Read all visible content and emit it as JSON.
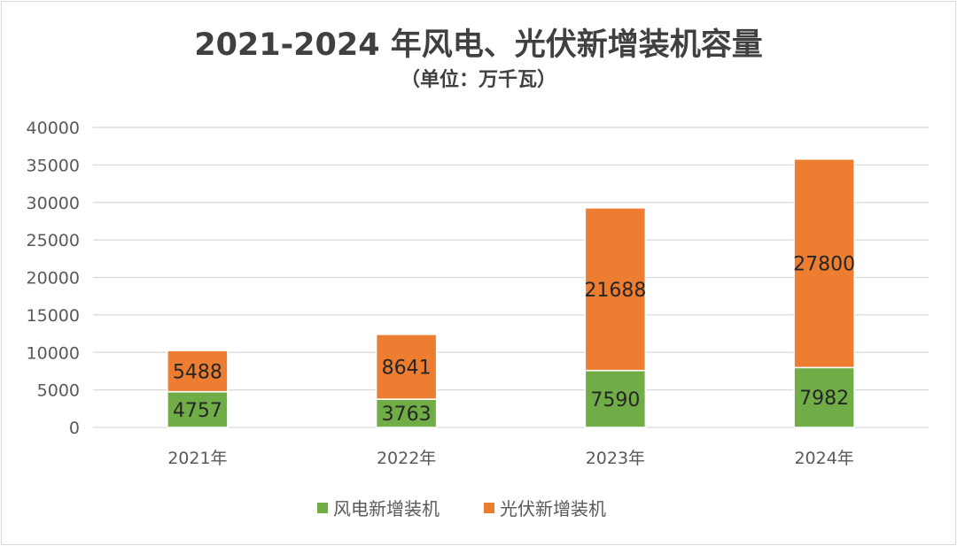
{
  "chart_data": {
    "type": "bar",
    "stacked": true,
    "title": "2021-2024 年风电、光伏新增装机容量",
    "subtitle": "（单位：万千瓦）",
    "xlabel": "",
    "ylabel": "",
    "ylim": [
      0,
      40000
    ],
    "yticks": [
      "0",
      "5000",
      "10000",
      "15000",
      "20000",
      "25000",
      "30000",
      "35000",
      "40000"
    ],
    "ytick_values": [
      0,
      5000,
      10000,
      15000,
      20000,
      25000,
      30000,
      35000,
      40000
    ],
    "grid": true,
    "legend_position": "bottom",
    "categories": [
      "2021年",
      "2022年",
      "2023年",
      "2024年"
    ],
    "series": [
      {
        "name": "风电新增装机",
        "color": "#70AD47",
        "values": [
          4757,
          3763,
          7590,
          7982
        ]
      },
      {
        "name": "光伏新增装机",
        "color": "#ED7D31",
        "values": [
          5488,
          8641,
          21688,
          27800
        ]
      }
    ]
  }
}
